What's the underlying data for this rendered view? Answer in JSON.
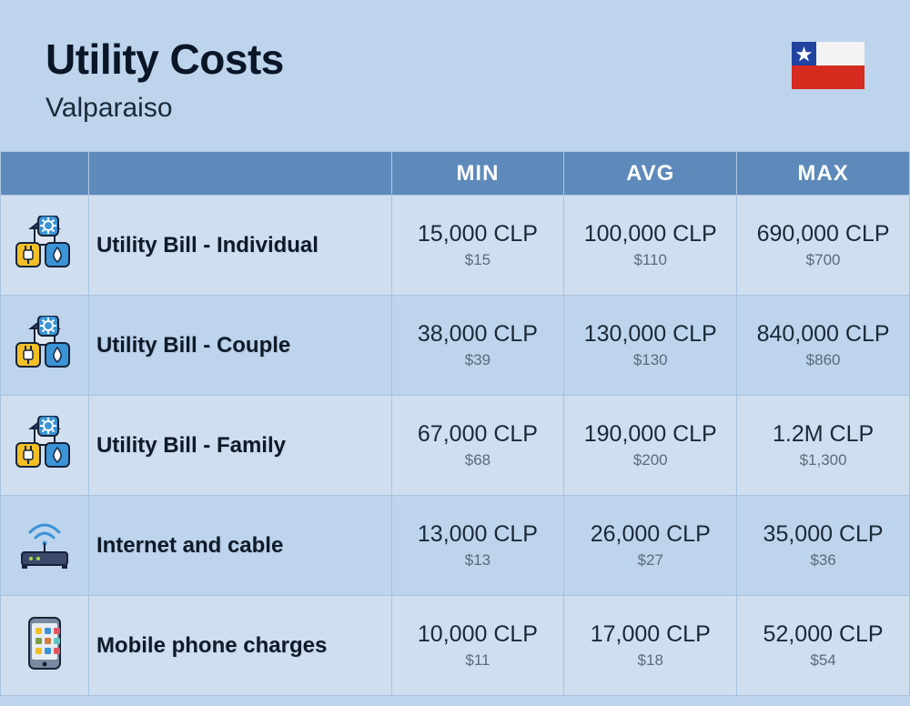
{
  "header": {
    "title": "Utility Costs",
    "subtitle": "Valparaiso"
  },
  "columns": {
    "min": "MIN",
    "avg": "AVG",
    "max": "MAX"
  },
  "flag": {
    "blue": "#2143a0",
    "red": "#d52b1e",
    "white": "#f3f3f3",
    "star": "#ffffff"
  },
  "rows": [
    {
      "icon": "utility-icon",
      "label": "Utility Bill - Individual",
      "min_main": "15,000 CLP",
      "min_sub": "$15",
      "avg_main": "100,000 CLP",
      "avg_sub": "$110",
      "max_main": "690,000 CLP",
      "max_sub": "$700"
    },
    {
      "icon": "utility-icon",
      "label": "Utility Bill - Couple",
      "min_main": "38,000 CLP",
      "min_sub": "$39",
      "avg_main": "130,000 CLP",
      "avg_sub": "$130",
      "max_main": "840,000 CLP",
      "max_sub": "$860"
    },
    {
      "icon": "utility-icon",
      "label": "Utility Bill - Family",
      "min_main": "67,000 CLP",
      "min_sub": "$68",
      "avg_main": "190,000 CLP",
      "avg_sub": "$200",
      "max_main": "1.2M CLP",
      "max_sub": "$1,300"
    },
    {
      "icon": "router-icon",
      "label": "Internet and cable",
      "min_main": "13,000 CLP",
      "min_sub": "$13",
      "avg_main": "26,000 CLP",
      "avg_sub": "$27",
      "max_main": "35,000 CLP",
      "max_sub": "$36"
    },
    {
      "icon": "phone-icon",
      "label": "Mobile phone charges",
      "min_main": "10,000 CLP",
      "min_sub": "$11",
      "avg_main": "17,000 CLP",
      "avg_sub": "$18",
      "max_main": "52,000 CLP",
      "max_sub": "$54"
    }
  ],
  "colors": {
    "bg": "#bdd4ec",
    "row_alt": "#cfdff0",
    "header_bg": "#5e8abb",
    "border": "#a8c2dd",
    "text_main": "#1a2838",
    "text_sub": "#5c6b7a",
    "title": "#0a1628"
  },
  "icons": {
    "utility": {
      "house_roof": "#2c3e66",
      "house_body": "#dfe6f0",
      "gear_bg": "#3a94d6",
      "plug_bg": "#f2c025",
      "water_bg": "#3a94d6"
    },
    "router": {
      "body": "#3b4a6b",
      "wave": "#3a94d6",
      "led": "#a6e050"
    },
    "phone": {
      "body": "#7a8aa0",
      "screen": "#e8edf4",
      "apps": [
        "#f2c025",
        "#3a94d6",
        "#e25563",
        "#7b9e42",
        "#d67c3a",
        "#5ec4c4"
      ]
    }
  }
}
